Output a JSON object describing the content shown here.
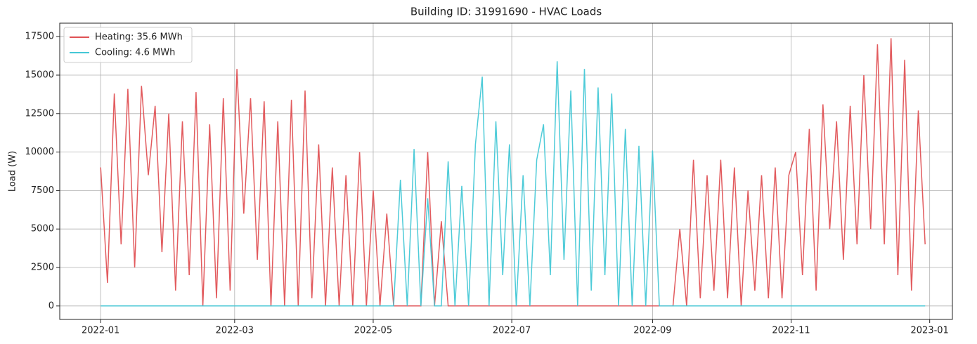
{
  "chart_data": {
    "type": "line",
    "title": "Building ID: 31991690 - HVAC Loads",
    "ylabel": "Load (W)",
    "x": [
      "2022-01-01",
      "2022-01-04",
      "2022-01-07",
      "2022-01-10",
      "2022-01-13",
      "2022-01-16",
      "2022-01-19",
      "2022-01-22",
      "2022-01-25",
      "2022-01-28",
      "2022-01-31",
      "2022-02-03",
      "2022-02-06",
      "2022-02-09",
      "2022-02-12",
      "2022-02-15",
      "2022-02-18",
      "2022-02-21",
      "2022-02-24",
      "2022-02-27",
      "2022-03-02",
      "2022-03-05",
      "2022-03-08",
      "2022-03-11",
      "2022-03-14",
      "2022-03-17",
      "2022-03-20",
      "2022-03-23",
      "2022-03-26",
      "2022-03-29",
      "2022-04-01",
      "2022-04-04",
      "2022-04-07",
      "2022-04-10",
      "2022-04-13",
      "2022-04-16",
      "2022-04-19",
      "2022-04-22",
      "2022-04-25",
      "2022-04-28",
      "2022-05-01",
      "2022-05-04",
      "2022-05-07",
      "2022-05-10",
      "2022-05-13",
      "2022-05-16",
      "2022-05-19",
      "2022-05-22",
      "2022-05-25",
      "2022-05-28",
      "2022-05-31",
      "2022-06-03",
      "2022-06-06",
      "2022-06-09",
      "2022-06-12",
      "2022-06-15",
      "2022-06-18",
      "2022-06-21",
      "2022-06-24",
      "2022-06-27",
      "2022-06-30",
      "2022-07-03",
      "2022-07-06",
      "2022-07-09",
      "2022-07-12",
      "2022-07-15",
      "2022-07-18",
      "2022-07-21",
      "2022-07-24",
      "2022-07-27",
      "2022-07-30",
      "2022-08-02",
      "2022-08-05",
      "2022-08-08",
      "2022-08-11",
      "2022-08-14",
      "2022-08-17",
      "2022-08-20",
      "2022-08-23",
      "2022-08-26",
      "2022-08-29",
      "2022-09-01",
      "2022-09-04",
      "2022-09-07",
      "2022-09-10",
      "2022-09-13",
      "2022-09-16",
      "2022-09-19",
      "2022-09-22",
      "2022-09-25",
      "2022-09-28",
      "2022-10-01",
      "2022-10-04",
      "2022-10-07",
      "2022-10-10",
      "2022-10-13",
      "2022-10-16",
      "2022-10-19",
      "2022-10-22",
      "2022-10-25",
      "2022-10-28",
      "2022-10-31",
      "2022-11-03",
      "2022-11-06",
      "2022-11-09",
      "2022-11-12",
      "2022-11-15",
      "2022-11-18",
      "2022-11-21",
      "2022-11-24",
      "2022-11-27",
      "2022-11-30",
      "2022-12-03",
      "2022-12-06",
      "2022-12-09",
      "2022-12-12",
      "2022-12-15",
      "2022-12-18",
      "2022-12-21",
      "2022-12-24",
      "2022-12-27",
      "2022-12-30"
    ],
    "series": [
      {
        "name": "Heating: 35.6 MWh",
        "color": "#e05255",
        "values": [
          9000,
          1500,
          13800,
          4000,
          14100,
          2500,
          14300,
          8500,
          13000,
          3500,
          12500,
          1000,
          12000,
          2000,
          13900,
          0,
          11800,
          500,
          13500,
          1000,
          15400,
          6000,
          13500,
          3000,
          13300,
          0,
          12000,
          0,
          13400,
          0,
          14000,
          500,
          10500,
          0,
          9000,
          0,
          8500,
          0,
          10000,
          0,
          7500,
          0,
          6000,
          0,
          0,
          0,
          0,
          0,
          10000,
          0,
          5500,
          0,
          0,
          0,
          0,
          0,
          0,
          0,
          0,
          0,
          0,
          0,
          0,
          0,
          0,
          0,
          0,
          0,
          0,
          0,
          0,
          0,
          0,
          0,
          0,
          0,
          0,
          0,
          0,
          0,
          0,
          0,
          0,
          0,
          0,
          5000,
          0,
          9500,
          500,
          8500,
          1000,
          9500,
          500,
          9000,
          0,
          7500,
          1000,
          8500,
          500,
          9000,
          500,
          8500,
          10000,
          2000,
          11500,
          1000,
          13100,
          5000,
          12000,
          3000,
          13000,
          4000,
          15000,
          5000,
          17000,
          4000,
          17400,
          2000,
          16000,
          1000,
          12700,
          4000
        ]
      },
      {
        "name": "Cooling: 4.6 MWh",
        "color": "#45c8d6",
        "values": [
          0,
          0,
          0,
          0,
          0,
          0,
          0,
          0,
          0,
          0,
          0,
          0,
          0,
          0,
          0,
          0,
          0,
          0,
          0,
          0,
          0,
          0,
          0,
          0,
          0,
          0,
          0,
          0,
          0,
          0,
          0,
          0,
          0,
          0,
          0,
          0,
          0,
          0,
          0,
          0,
          0,
          0,
          0,
          0,
          8200,
          0,
          10200,
          0,
          7000,
          0,
          0,
          9400,
          0,
          7800,
          0,
          10500,
          14900,
          0,
          12000,
          2000,
          10500,
          0,
          8500,
          0,
          9500,
          11800,
          2000,
          15900,
          3000,
          14000,
          0,
          15400,
          1000,
          14200,
          2000,
          13800,
          0,
          11500,
          0,
          10400,
          0,
          10100,
          0,
          0,
          0,
          0,
          0,
          0,
          0,
          0,
          0,
          0,
          0,
          0,
          0,
          0,
          0,
          0,
          0,
          0,
          0,
          0,
          0,
          0,
          0,
          0,
          0,
          0,
          0,
          0,
          0,
          0,
          0,
          0,
          0,
          0,
          0,
          0,
          0,
          0,
          0,
          0
        ]
      }
    ],
    "xlim": [
      "2021-12-14",
      "2023-01-11"
    ],
    "xticks": [
      {
        "value": "2022-01-01",
        "label": "2022-01"
      },
      {
        "value": "2022-03-01",
        "label": "2022-03"
      },
      {
        "value": "2022-05-01",
        "label": "2022-05"
      },
      {
        "value": "2022-07-01",
        "label": "2022-07"
      },
      {
        "value": "2022-09-01",
        "label": "2022-09"
      },
      {
        "value": "2022-11-01",
        "label": "2022-11"
      },
      {
        "value": "2023-01-01",
        "label": "2023-01"
      }
    ],
    "ylim": [
      -875,
      18375
    ],
    "yticks": [
      0,
      2500,
      5000,
      7500,
      10000,
      12500,
      15000,
      17500
    ],
    "grid": true,
    "legend": "upper left"
  }
}
